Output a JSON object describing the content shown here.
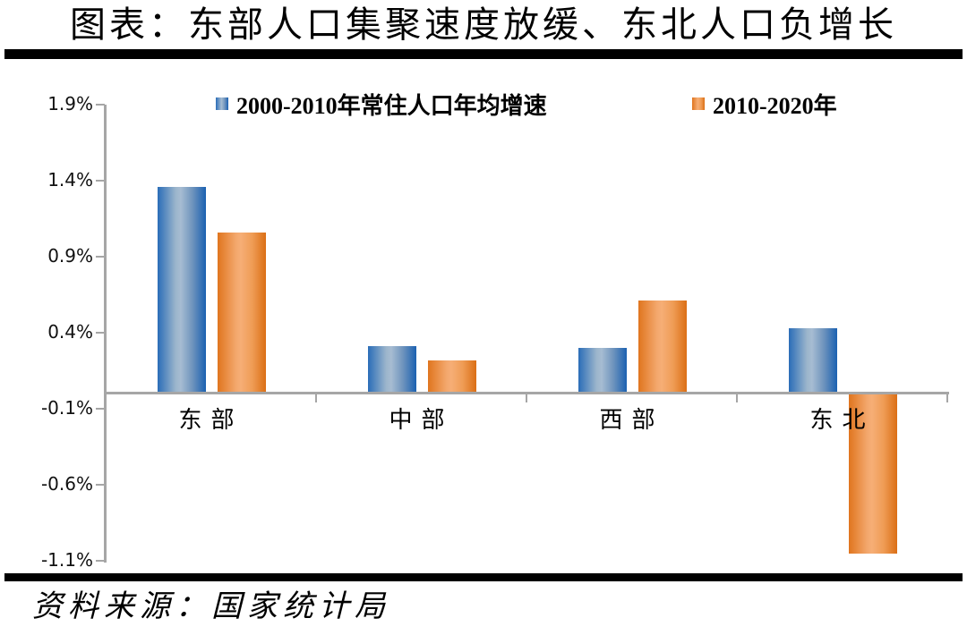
{
  "page": {
    "title": "图表：东部人口集聚速度放缓、东北人口负增长",
    "source": "资料来源：国家统计局"
  },
  "chart_data": {
    "type": "bar",
    "title": "东部人口集聚速度放缓、东北人口负增长",
    "categories": [
      "东部",
      "中部",
      "西部",
      "东北"
    ],
    "series": [
      {
        "name": "2000-2010年常住人口年均增速",
        "color": "#2e74b5",
        "values": [
          1.36,
          0.31,
          0.3,
          0.43
        ]
      },
      {
        "name": "2010-2020年",
        "color": "#ed7d31",
        "values": [
          1.06,
          0.22,
          0.61,
          -1.05
        ]
      }
    ],
    "y_ticks": [
      {
        "value": 1.9,
        "label": "1.9%"
      },
      {
        "value": 1.4,
        "label": "1.4%"
      },
      {
        "value": 0.9,
        "label": "0.9%"
      },
      {
        "value": 0.4,
        "label": "0.4%"
      },
      {
        "value": -0.1,
        "label": "-0.1%"
      },
      {
        "value": -0.6,
        "label": "-0.6%"
      },
      {
        "value": -1.1,
        "label": "-1.1%"
      }
    ],
    "ylim": [
      -1.1,
      1.9
    ],
    "unit": "%",
    "xlabel": "",
    "ylabel": "",
    "legend_position": "top",
    "grid": false,
    "axis_color": "#a6a6a6"
  }
}
